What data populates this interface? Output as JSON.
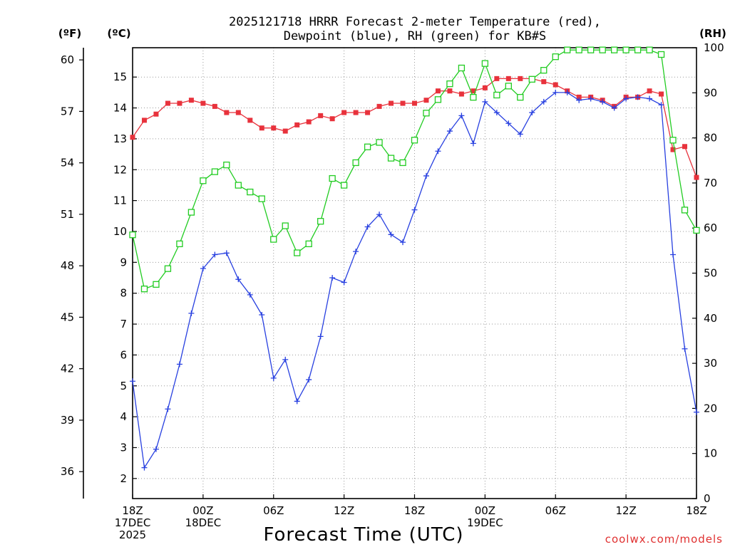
{
  "chart_data": {
    "type": "line",
    "title_line1": "2025121718 HRRR Forecast 2-meter Temperature (red),",
    "title_line2": "Dewpoint (blue), RH (green) for KB#S",
    "xlabel": "Forecast Time (UTC)",
    "credit": "coolwx.com/models",
    "unit_left_f": "(ºF)",
    "unit_left_c": "(ºC)",
    "unit_right": "(RH)",
    "x_hours": [
      0,
      1,
      2,
      3,
      4,
      5,
      6,
      7,
      8,
      9,
      10,
      11,
      12,
      13,
      14,
      15,
      16,
      17,
      18,
      19,
      20,
      21,
      22,
      23,
      24,
      25,
      26,
      27,
      28,
      29,
      30,
      31,
      32,
      33,
      34,
      35,
      36,
      37,
      38,
      39,
      40,
      41,
      42,
      43,
      44,
      45,
      46,
      47,
      48
    ],
    "xlim": [
      0,
      48
    ],
    "c_lim": [
      1.35,
      15.95
    ],
    "rh_lim": [
      0,
      100
    ],
    "f_ticks": [
      36,
      39,
      42,
      45,
      48,
      51,
      54,
      57,
      60
    ],
    "c_ticks": [
      2,
      3,
      4,
      5,
      6,
      7,
      8,
      9,
      10,
      11,
      12,
      13,
      14,
      15
    ],
    "rh_ticks": [
      0,
      10,
      20,
      30,
      40,
      50,
      60,
      70,
      80,
      90,
      100
    ],
    "x_ticks": [
      {
        "hour": 0,
        "lines": [
          "18Z",
          "17DEC",
          "2025"
        ]
      },
      {
        "hour": 6,
        "lines": [
          "00Z",
          "18DEC"
        ]
      },
      {
        "hour": 12,
        "lines": [
          "06Z"
        ]
      },
      {
        "hour": 18,
        "lines": [
          "12Z"
        ]
      },
      {
        "hour": 24,
        "lines": [
          "18Z"
        ]
      },
      {
        "hour": 30,
        "lines": [
          "00Z",
          "19DEC"
        ]
      },
      {
        "hour": 36,
        "lines": [
          "06Z"
        ]
      },
      {
        "hour": 42,
        "lines": [
          "12Z"
        ]
      },
      {
        "hour": 48,
        "lines": [
          "18Z"
        ]
      }
    ],
    "series": [
      {
        "name": "Temperature",
        "unit": "C",
        "color": "#e8323c",
        "marker": "filled-square",
        "values": [
          13.05,
          13.6,
          13.8,
          14.15,
          14.15,
          14.25,
          14.15,
          14.05,
          13.85,
          13.85,
          13.6,
          13.35,
          13.35,
          13.25,
          13.45,
          13.55,
          13.75,
          13.65,
          13.85,
          13.85,
          13.85,
          14.05,
          14.15,
          14.15,
          14.15,
          14.25,
          14.55,
          14.55,
          14.45,
          14.55,
          14.65,
          14.95,
          14.95,
          14.95,
          14.95,
          14.85,
          14.75,
          14.55,
          14.35,
          14.35,
          14.25,
          14.05,
          14.35,
          14.35,
          14.55,
          14.45,
          12.65,
          12.75,
          11.75
        ]
      },
      {
        "name": "Dewpoint",
        "unit": "C",
        "color": "#2840e0",
        "marker": "plus",
        "values": [
          5.15,
          2.35,
          2.95,
          4.25,
          5.7,
          7.35,
          8.8,
          9.25,
          9.3,
          8.45,
          7.95,
          7.3,
          5.25,
          5.85,
          4.5,
          5.2,
          6.6,
          8.5,
          8.35,
          9.35,
          10.15,
          10.55,
          9.9,
          9.65,
          10.7,
          11.8,
          12.6,
          13.25,
          13.75,
          12.85,
          14.2,
          13.85,
          13.5,
          13.15,
          13.85,
          14.2,
          14.5,
          14.5,
          14.25,
          14.3,
          14.2,
          14.0,
          14.3,
          14.35,
          14.3,
          14.1,
          9.25,
          6.2,
          4.15
        ]
      },
      {
        "name": "RH",
        "unit": "%",
        "color": "#22cc22",
        "marker": "open-square",
        "values": [
          58.5,
          46.5,
          47.5,
          51,
          56.5,
          63.5,
          70.5,
          72.5,
          74,
          69.5,
          68,
          66.5,
          57.5,
          60.5,
          54.5,
          56.5,
          61.5,
          71,
          69.5,
          74.5,
          78,
          79,
          75.5,
          74.5,
          79.5,
          85.5,
          88.5,
          92,
          95.5,
          89,
          96.5,
          89.5,
          91.5,
          89,
          93,
          95,
          98,
          99.5,
          99.5,
          99.5,
          99.5,
          99.5,
          99.5,
          99.5,
          99.5,
          98.5,
          79.5,
          64,
          59.5
        ]
      }
    ]
  }
}
